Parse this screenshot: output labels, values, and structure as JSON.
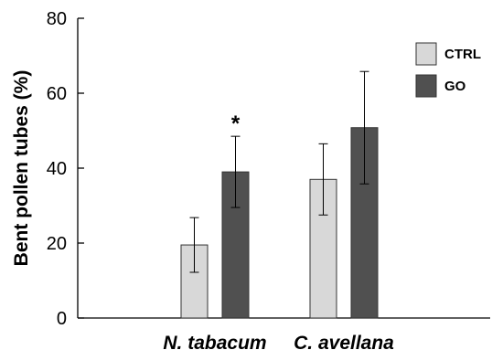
{
  "chart_data": {
    "type": "bar",
    "title": "",
    "xlabel": "",
    "ylabel": "Bent pollen tubes (%)",
    "ylim": [
      0,
      80
    ],
    "yticks": [
      0,
      20,
      40,
      60,
      80
    ],
    "categories": [
      "N. tabacum",
      "C. avellana"
    ],
    "series": [
      {
        "name": "CTRL",
        "color": "#d8d8d8",
        "values": [
          19.5,
          37
        ],
        "errors": [
          7.3,
          9.5
        ]
      },
      {
        "name": "GO",
        "color": "#505050",
        "values": [
          39,
          50.8
        ],
        "errors": [
          9.5,
          15
        ]
      }
    ],
    "annotations": [
      {
        "text": "*",
        "category": "N. tabacum",
        "series": "GO"
      }
    ],
    "legend_position": "top-right",
    "grid": false
  }
}
